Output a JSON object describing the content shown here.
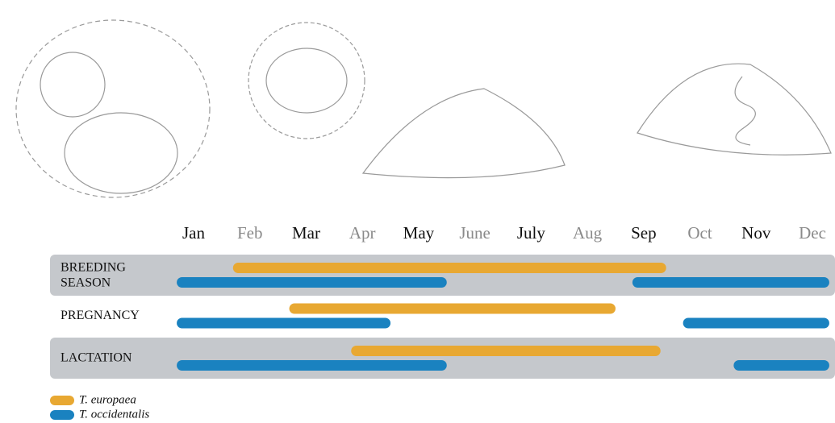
{
  "chart_data": {
    "type": "timeline",
    "categories": [
      "Jan",
      "Feb",
      "Mar",
      "Apr",
      "May",
      "June",
      "July",
      "Aug",
      "Sep",
      "Oct",
      "Nov",
      "Dec"
    ],
    "category_colors": [
      "#111111",
      "#8a8a8a",
      "#111111",
      "#8a8a8a",
      "#111111",
      "#8a8a8a",
      "#111111",
      "#8a8a8a",
      "#111111",
      "#8a8a8a",
      "#111111",
      "#8a8a8a"
    ],
    "xlim": [
      1,
      12
    ],
    "rows": [
      {
        "label": [
          "BREEDING",
          "SEASON"
        ],
        "shaded": true
      },
      {
        "label": [
          "PREGNANCY"
        ],
        "shaded": false
      },
      {
        "label": [
          "LACTATION"
        ],
        "shaded": true
      }
    ],
    "series": [
      {
        "name": "T. europaea",
        "color": "#e8a832",
        "values": [
          [
            [
              1.7,
              9.4
            ]
          ],
          [
            [
              2.7,
              8.5
            ]
          ],
          [
            [
              3.8,
              9.3
            ]
          ]
        ]
      },
      {
        "name": "T. occidentalis",
        "color": "#1a82c0",
        "values": [
          [
            [
              0.7,
              5.5
            ],
            [
              8.8,
              12.3
            ]
          ],
          [
            [
              0.7,
              4.5
            ],
            [
              9.7,
              12.3
            ]
          ],
          [
            [
              0.7,
              5.5
            ],
            [
              10.6,
              12.3
            ]
          ]
        ]
      }
    ]
  }
}
